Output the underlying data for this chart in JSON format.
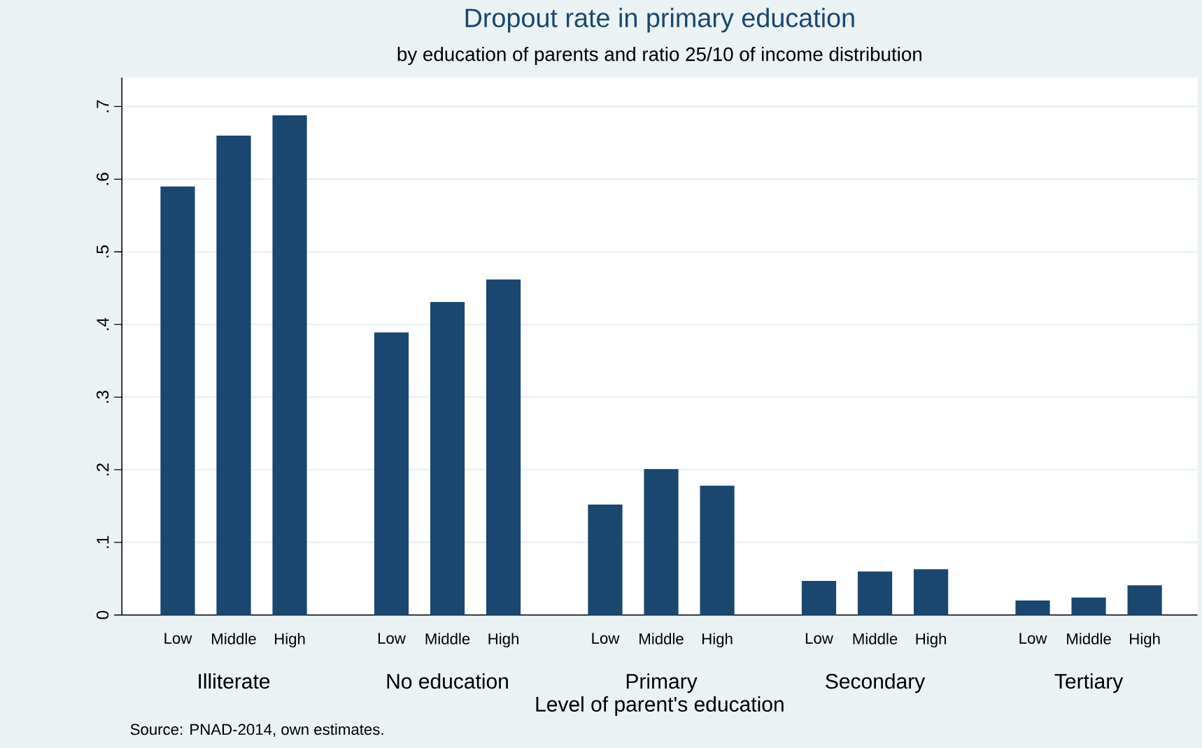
{
  "chart_data": {
    "type": "bar",
    "title": "Dropout rate in primary education",
    "subtitle": "by education of parents and ratio 25/10 of income distribution",
    "xlabel": "Level of parent's education",
    "categories": [
      "Illiterate",
      "No education",
      "Primary",
      "Secondary",
      "Tertiary"
    ],
    "series": [
      {
        "name": "Low",
        "color": "#1a476f",
        "values": [
          0.59,
          0.389,
          0.152,
          0.047,
          0.02
        ]
      },
      {
        "name": "Middle",
        "color": "#1a476f",
        "values": [
          0.66,
          0.431,
          0.201,
          0.06,
          0.024
        ]
      },
      {
        "name": "High",
        "color": "#1a476f",
        "values": [
          0.688,
          0.462,
          0.178,
          0.063,
          0.041
        ]
      }
    ],
    "ylim": [
      0,
      0.74
    ],
    "yticks": [
      0,
      {
        "value": 0.1,
        "label": ".1"
      },
      {
        "value": 0.2,
        "label": ".2"
      },
      {
        "value": 0.3,
        "label": ".3"
      },
      {
        "value": 0.4,
        "label": ".4"
      },
      {
        "value": 0.5,
        "label": ".5"
      },
      {
        "value": 0.6,
        "label": ".6"
      },
      {
        "value": 0.7,
        "label": ".7"
      }
    ],
    "grid": "y",
    "annotations": [
      "Source: PNAD-2014, own estimates."
    ]
  }
}
